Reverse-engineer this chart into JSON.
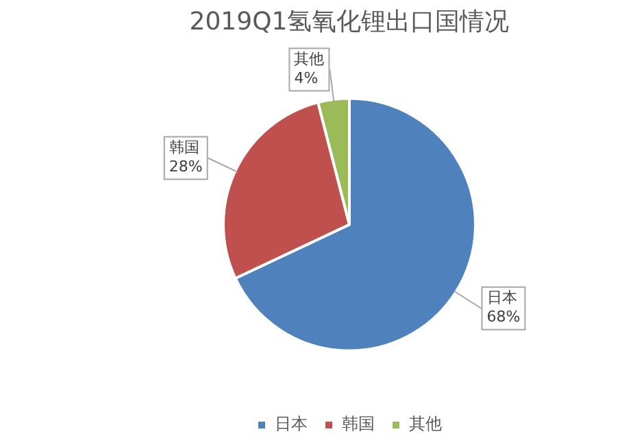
{
  "chart_data": {
    "type": "pie",
    "title": "2019Q1氢氧化锂出口国情况",
    "categories": [
      "日本",
      "韩国",
      "其他"
    ],
    "values": [
      68,
      28,
      4
    ],
    "value_labels": [
      "68%",
      "28%",
      "4%"
    ],
    "colors": [
      "#4f81bd",
      "#c0504d",
      "#9bbb59"
    ],
    "legend": "bottom"
  }
}
